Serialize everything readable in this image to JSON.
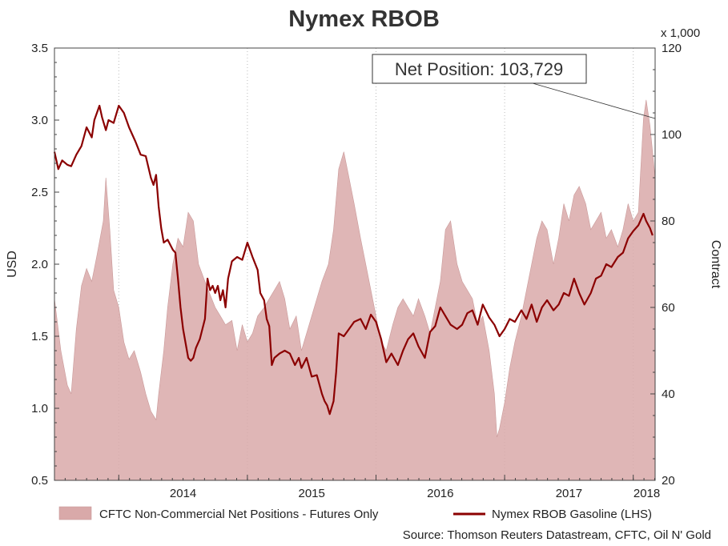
{
  "chart_data": {
    "type": "line",
    "title": "Nymex RBOB",
    "y_left": {
      "label": "USD",
      "range": [
        0.5,
        3.5
      ],
      "ticks": [
        "0.5",
        "1.0",
        "1.5",
        "2.0",
        "2.5",
        "3.0",
        "3.5"
      ]
    },
    "y_right": {
      "label": "Contract",
      "unit_note": "x 1,000",
      "range": [
        20,
        120
      ],
      "ticks": [
        "20",
        "40",
        "60",
        "80",
        "100",
        "120"
      ]
    },
    "x_axis": {
      "range": [
        2013.5,
        2018.17
      ],
      "year_labels": [
        "2014",
        "2015",
        "2016",
        "2017",
        "2018"
      ]
    },
    "grid": "dotted-vertical-at-year-boundaries",
    "legend_position": "bottom",
    "series": [
      {
        "name": "CFTC Non-Commercial Net Positions - Futures Only",
        "kind": "area",
        "axis": "right",
        "color": "#d9a9a9",
        "points": [
          [
            2013.5,
            62
          ],
          [
            2013.55,
            50
          ],
          [
            2013.6,
            42
          ],
          [
            2013.63,
            40
          ],
          [
            2013.67,
            55
          ],
          [
            2013.71,
            65
          ],
          [
            2013.75,
            69
          ],
          [
            2013.79,
            66
          ],
          [
            2013.83,
            72
          ],
          [
            2013.88,
            80
          ],
          [
            2013.9,
            90
          ],
          [
            2013.93,
            78
          ],
          [
            2013.96,
            64
          ],
          [
            2014.0,
            60
          ],
          [
            2014.04,
            52
          ],
          [
            2014.08,
            48
          ],
          [
            2014.12,
            50
          ],
          [
            2014.17,
            45
          ],
          [
            2014.21,
            40
          ],
          [
            2014.25,
            36
          ],
          [
            2014.29,
            34
          ],
          [
            2014.31,
            40
          ],
          [
            2014.35,
            50
          ],
          [
            2014.38,
            60
          ],
          [
            2014.42,
            70
          ],
          [
            2014.46,
            76
          ],
          [
            2014.5,
            74
          ],
          [
            2014.54,
            82
          ],
          [
            2014.58,
            80
          ],
          [
            2014.62,
            70
          ],
          [
            2014.67,
            66
          ],
          [
            2014.71,
            63
          ],
          [
            2014.75,
            60
          ],
          [
            2014.79,
            58
          ],
          [
            2014.83,
            56
          ],
          [
            2014.88,
            57
          ],
          [
            2014.92,
            50
          ],
          [
            2014.96,
            56
          ],
          [
            2015.0,
            52
          ],
          [
            2015.04,
            54
          ],
          [
            2015.08,
            58
          ],
          [
            2015.13,
            60
          ],
          [
            2015.17,
            62
          ],
          [
            2015.21,
            64
          ],
          [
            2015.25,
            66
          ],
          [
            2015.29,
            62
          ],
          [
            2015.33,
            55
          ],
          [
            2015.38,
            58
          ],
          [
            2015.42,
            50
          ],
          [
            2015.46,
            54
          ],
          [
            2015.5,
            58
          ],
          [
            2015.54,
            62
          ],
          [
            2015.58,
            66
          ],
          [
            2015.63,
            70
          ],
          [
            2015.67,
            78
          ],
          [
            2015.71,
            92
          ],
          [
            2015.75,
            96
          ],
          [
            2015.79,
            90
          ],
          [
            2015.83,
            84
          ],
          [
            2015.88,
            76
          ],
          [
            2015.92,
            70
          ],
          [
            2015.96,
            64
          ],
          [
            2016.0,
            58
          ],
          [
            2016.04,
            52
          ],
          [
            2016.08,
            50
          ],
          [
            2016.13,
            56
          ],
          [
            2016.17,
            60
          ],
          [
            2016.21,
            62
          ],
          [
            2016.25,
            60
          ],
          [
            2016.29,
            58
          ],
          [
            2016.33,
            62
          ],
          [
            2016.38,
            58
          ],
          [
            2016.42,
            54
          ],
          [
            2016.46,
            60
          ],
          [
            2016.5,
            66
          ],
          [
            2016.54,
            78
          ],
          [
            2016.58,
            80
          ],
          [
            2016.63,
            70
          ],
          [
            2016.67,
            66
          ],
          [
            2016.71,
            64
          ],
          [
            2016.75,
            62
          ],
          [
            2016.79,
            56
          ],
          [
            2016.83,
            58
          ],
          [
            2016.88,
            50
          ],
          [
            2016.92,
            40
          ],
          [
            2016.94,
            30
          ],
          [
            2016.96,
            32
          ],
          [
            2017.0,
            38
          ],
          [
            2017.04,
            46
          ],
          [
            2017.08,
            52
          ],
          [
            2017.13,
            58
          ],
          [
            2017.17,
            64
          ],
          [
            2017.21,
            70
          ],
          [
            2017.25,
            76
          ],
          [
            2017.29,
            80
          ],
          [
            2017.33,
            78
          ],
          [
            2017.38,
            70
          ],
          [
            2017.42,
            76
          ],
          [
            2017.46,
            84
          ],
          [
            2017.5,
            80
          ],
          [
            2017.54,
            86
          ],
          [
            2017.58,
            88
          ],
          [
            2017.63,
            84
          ],
          [
            2017.67,
            78
          ],
          [
            2017.71,
            80
          ],
          [
            2017.75,
            82
          ],
          [
            2017.79,
            76
          ],
          [
            2017.83,
            78
          ],
          [
            2017.88,
            74
          ],
          [
            2017.92,
            78
          ],
          [
            2017.96,
            84
          ],
          [
            2018.0,
            80
          ],
          [
            2018.04,
            82
          ],
          [
            2018.08,
            103.7
          ],
          [
            2018.1,
            108
          ],
          [
            2018.13,
            102
          ],
          [
            2018.17,
            90
          ]
        ]
      },
      {
        "name": "Nymex RBOB Gasoline (LHS)",
        "kind": "line",
        "axis": "left",
        "color": "#8b0000",
        "points": [
          [
            2013.5,
            2.78
          ],
          [
            2013.53,
            2.66
          ],
          [
            2013.56,
            2.72
          ],
          [
            2013.6,
            2.69
          ],
          [
            2013.63,
            2.68
          ],
          [
            2013.67,
            2.76
          ],
          [
            2013.71,
            2.82
          ],
          [
            2013.75,
            2.95
          ],
          [
            2013.79,
            2.88
          ],
          [
            2013.81,
            3.0
          ],
          [
            2013.83,
            3.05
          ],
          [
            2013.85,
            3.1
          ],
          [
            2013.87,
            3.02
          ],
          [
            2013.9,
            2.93
          ],
          [
            2013.92,
            3.0
          ],
          [
            2013.96,
            2.98
          ],
          [
            2014.0,
            3.1
          ],
          [
            2014.04,
            3.05
          ],
          [
            2014.08,
            2.95
          ],
          [
            2014.13,
            2.85
          ],
          [
            2014.17,
            2.76
          ],
          [
            2014.21,
            2.75
          ],
          [
            2014.25,
            2.6
          ],
          [
            2014.27,
            2.55
          ],
          [
            2014.29,
            2.62
          ],
          [
            2014.31,
            2.4
          ],
          [
            2014.33,
            2.25
          ],
          [
            2014.35,
            2.15
          ],
          [
            2014.38,
            2.17
          ],
          [
            2014.42,
            2.1
          ],
          [
            2014.44,
            2.08
          ],
          [
            2014.46,
            1.9
          ],
          [
            2014.48,
            1.7
          ],
          [
            2014.5,
            1.55
          ],
          [
            2014.52,
            1.45
          ],
          [
            2014.54,
            1.35
          ],
          [
            2014.56,
            1.33
          ],
          [
            2014.58,
            1.35
          ],
          [
            2014.6,
            1.42
          ],
          [
            2014.63,
            1.48
          ],
          [
            2014.65,
            1.55
          ],
          [
            2014.67,
            1.62
          ],
          [
            2014.69,
            1.9
          ],
          [
            2014.71,
            1.82
          ],
          [
            2014.73,
            1.85
          ],
          [
            2014.75,
            1.8
          ],
          [
            2014.77,
            1.85
          ],
          [
            2014.79,
            1.75
          ],
          [
            2014.81,
            1.82
          ],
          [
            2014.83,
            1.7
          ],
          [
            2014.85,
            1.9
          ],
          [
            2014.88,
            2.02
          ],
          [
            2014.92,
            2.05
          ],
          [
            2014.96,
            2.03
          ],
          [
            2015.0,
            2.15
          ],
          [
            2015.04,
            2.05
          ],
          [
            2015.08,
            1.96
          ],
          [
            2015.1,
            1.8
          ],
          [
            2015.13,
            1.75
          ],
          [
            2015.15,
            1.62
          ],
          [
            2015.17,
            1.57
          ],
          [
            2015.19,
            1.3
          ],
          [
            2015.21,
            1.35
          ],
          [
            2015.25,
            1.38
          ],
          [
            2015.29,
            1.4
          ],
          [
            2015.33,
            1.38
          ],
          [
            2015.37,
            1.3
          ],
          [
            2015.4,
            1.35
          ],
          [
            2015.42,
            1.28
          ],
          [
            2015.46,
            1.35
          ],
          [
            2015.5,
            1.22
          ],
          [
            2015.54,
            1.23
          ],
          [
            2015.58,
            1.1
          ],
          [
            2015.6,
            1.05
          ],
          [
            2015.62,
            1.02
          ],
          [
            2015.64,
            0.96
          ],
          [
            2015.66,
            1.02
          ],
          [
            2015.67,
            1.05
          ],
          [
            2015.69,
            1.25
          ],
          [
            2015.71,
            1.52
          ],
          [
            2015.75,
            1.5
          ],
          [
            2015.79,
            1.55
          ],
          [
            2015.83,
            1.6
          ],
          [
            2015.88,
            1.62
          ],
          [
            2015.92,
            1.55
          ],
          [
            2015.96,
            1.65
          ],
          [
            2016.0,
            1.6
          ],
          [
            2016.04,
            1.48
          ],
          [
            2016.08,
            1.32
          ],
          [
            2016.12,
            1.38
          ],
          [
            2016.17,
            1.3
          ],
          [
            2016.21,
            1.4
          ],
          [
            2016.25,
            1.48
          ],
          [
            2016.29,
            1.52
          ],
          [
            2016.33,
            1.43
          ],
          [
            2016.38,
            1.35
          ],
          [
            2016.42,
            1.53
          ],
          [
            2016.46,
            1.57
          ],
          [
            2016.5,
            1.7
          ],
          [
            2016.54,
            1.64
          ],
          [
            2016.58,
            1.58
          ],
          [
            2016.63,
            1.55
          ],
          [
            2016.67,
            1.58
          ],
          [
            2016.71,
            1.66
          ],
          [
            2016.75,
            1.68
          ],
          [
            2016.79,
            1.58
          ],
          [
            2016.83,
            1.72
          ],
          [
            2016.88,
            1.63
          ],
          [
            2016.92,
            1.58
          ],
          [
            2016.96,
            1.5
          ],
          [
            2017.0,
            1.55
          ],
          [
            2017.04,
            1.62
          ],
          [
            2017.08,
            1.6
          ],
          [
            2017.13,
            1.68
          ],
          [
            2017.17,
            1.62
          ],
          [
            2017.21,
            1.72
          ],
          [
            2017.25,
            1.6
          ],
          [
            2017.29,
            1.7
          ],
          [
            2017.33,
            1.75
          ],
          [
            2017.38,
            1.68
          ],
          [
            2017.42,
            1.72
          ],
          [
            2017.46,
            1.8
          ],
          [
            2017.5,
            1.78
          ],
          [
            2017.54,
            1.9
          ],
          [
            2017.58,
            1.8
          ],
          [
            2017.62,
            1.72
          ],
          [
            2017.67,
            1.8
          ],
          [
            2017.71,
            1.9
          ],
          [
            2017.75,
            1.92
          ],
          [
            2017.79,
            2.0
          ],
          [
            2017.83,
            1.98
          ],
          [
            2017.88,
            2.05
          ],
          [
            2017.92,
            2.08
          ],
          [
            2017.96,
            2.18
          ],
          [
            2018.0,
            2.23
          ],
          [
            2018.04,
            2.27
          ],
          [
            2018.08,
            2.35
          ],
          [
            2018.1,
            2.3
          ],
          [
            2018.13,
            2.25
          ],
          [
            2018.15,
            2.2
          ]
        ]
      }
    ],
    "annotation": {
      "text": "Net Position: 103,729",
      "x": 2018.17,
      "y_right": 103.7
    }
  },
  "legend": {
    "area_label": "CFTC Non-Commercial Net Positions - Futures Only",
    "line_label": "Nymex RBOB Gasoline (LHS)"
  },
  "source": "Source: Thomson Reuters Datastream, CFTC, Oil N' Gold"
}
